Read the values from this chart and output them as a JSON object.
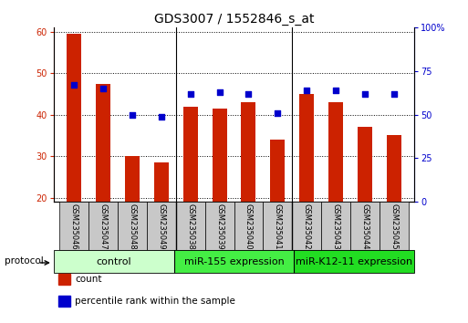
{
  "title": "GDS3007 / 1552846_s_at",
  "categories": [
    "GSM235046",
    "GSM235047",
    "GSM235048",
    "GSM235049",
    "GSM235038",
    "GSM235039",
    "GSM235040",
    "GSM235041",
    "GSM235042",
    "GSM235043",
    "GSM235044",
    "GSM235045"
  ],
  "count_values": [
    59.5,
    47.5,
    30.0,
    28.5,
    42.0,
    41.5,
    43.0,
    34.0,
    45.0,
    43.0,
    37.0,
    35.0
  ],
  "percentile_values": [
    67,
    65,
    50,
    49,
    62,
    63,
    62,
    51,
    64,
    64,
    62,
    62
  ],
  "ylim_left": [
    19,
    61
  ],
  "ylim_right": [
    0,
    100
  ],
  "yticks_left": [
    20,
    30,
    40,
    50,
    60
  ],
  "yticks_right": [
    0,
    25,
    50,
    75,
    100
  ],
  "bar_color": "#cc2200",
  "dot_color": "#0000cc",
  "grid_color": "#000000",
  "group_configs": [
    {
      "start": 0,
      "end": 4,
      "label": "control",
      "color": "#ccffcc"
    },
    {
      "start": 4,
      "end": 8,
      "label": "miR-155 expression",
      "color": "#44ee44"
    },
    {
      "start": 8,
      "end": 12,
      "label": "miR-K12-11 expression",
      "color": "#22dd22"
    }
  ],
  "protocol_label": "protocol",
  "legend_items": [
    {
      "label": "count",
      "color": "#cc2200"
    },
    {
      "label": "percentile rank within the sample",
      "color": "#0000cc"
    }
  ],
  "bar_width": 0.5,
  "title_fontsize": 10,
  "tick_fontsize": 7,
  "xtick_fontsize": 6,
  "group_fontsize": 8,
  "legend_fontsize": 7.5
}
